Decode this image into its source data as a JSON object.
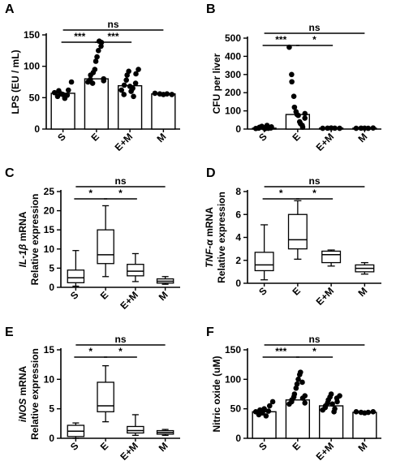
{
  "chart_data": [
    {
      "panel": "A",
      "type": "bar",
      "ylabel": "LPS (EU / mL)",
      "ylabel_parts": [
        {
          "t": "LPS (EU / mL)",
          "i": false
        }
      ],
      "ylim": [
        0,
        150
      ],
      "yticks": [
        0,
        50,
        100,
        150
      ],
      "categories": [
        "S",
        "E",
        "E+M",
        "M"
      ],
      "values": [
        57,
        80,
        69,
        56
      ],
      "points": [
        [
          58,
          52,
          61,
          56,
          55,
          49,
          54,
          62,
          75
        ],
        [
          75,
          79,
          86,
          73,
          90,
          95,
          108,
          115,
          125,
          140,
          132,
          138,
          80,
          77
        ],
        [
          62,
          55,
          70,
          78,
          86,
          92,
          68,
          60,
          65,
          52,
          73,
          88,
          95
        ],
        [
          57,
          56,
          55,
          56,
          55
        ]
      ],
      "comparisons": [
        {
          "from": 0,
          "to": 3,
          "label": "ns",
          "level": 0
        },
        {
          "from": 0,
          "to": 1,
          "label": "***",
          "level": 1
        },
        {
          "from": 1,
          "to": 2,
          "label": "***",
          "level": 1
        }
      ]
    },
    {
      "panel": "B",
      "type": "bar",
      "ylabel": "CFU per liver",
      "ylabel_parts": [
        {
          "t": "CFU per liver",
          "i": false
        }
      ],
      "ylim": [
        0,
        500
      ],
      "yticks": [
        0,
        100,
        200,
        300,
        400,
        500
      ],
      "categories": [
        "S",
        "E",
        "E+M",
        "M"
      ],
      "values": [
        5,
        80,
        5,
        5
      ],
      "points": [
        [
          3,
          5,
          10,
          15,
          8,
          2,
          20,
          4,
          6,
          12
        ],
        [
          450,
          300,
          260,
          180,
          120,
          95,
          80,
          75,
          40,
          30,
          20,
          10,
          60,
          85
        ],
        [
          4,
          5,
          6,
          5,
          4
        ],
        [
          4,
          5,
          5,
          4,
          6
        ]
      ],
      "comparisons": [
        {
          "from": 0,
          "to": 3,
          "label": "ns",
          "level": 0
        },
        {
          "from": 0,
          "to": 1,
          "label": "***",
          "level": 1
        },
        {
          "from": 1,
          "to": 2,
          "label": "*",
          "level": 1
        }
      ]
    },
    {
      "panel": "C",
      "type": "box",
      "ylabel": "IL-1β mRNA Relative expression",
      "ylabel_parts": [
        {
          "t": "IL-1",
          "i": true
        },
        {
          "t": "β",
          "i": true
        },
        {
          "t": " mRNA",
          "i": false
        }
      ],
      "ylabel2": "Relative expression",
      "ylim": [
        0,
        25
      ],
      "yticks": [
        0,
        5,
        10,
        15,
        20,
        25
      ],
      "categories": [
        "S",
        "E",
        "E+M",
        "M"
      ],
      "boxes": [
        {
          "min": 0.3,
          "q1": 1.2,
          "median": 2.5,
          "q3": 4.5,
          "max": 9.6
        },
        {
          "min": 2.8,
          "q1": 6.2,
          "median": 8.5,
          "q3": 15.0,
          "max": 21.3
        },
        {
          "min": 1.5,
          "q1": 3.0,
          "median": 4.2,
          "q3": 6.0,
          "max": 8.8
        },
        {
          "min": 0.8,
          "q1": 1.1,
          "median": 1.6,
          "q3": 2.2,
          "max": 2.8
        }
      ],
      "comparisons": [
        {
          "from": 0,
          "to": 3,
          "label": "ns",
          "level": 0
        },
        {
          "from": 0,
          "to": 1,
          "label": "*",
          "level": 1
        },
        {
          "from": 1,
          "to": 2,
          "label": "*",
          "level": 1
        }
      ]
    },
    {
      "panel": "D",
      "type": "box",
      "ylabel": "TNF-α mRNA Relative expression",
      "ylabel_parts": [
        {
          "t": "TNF-",
          "i": true
        },
        {
          "t": "α",
          "i": true
        },
        {
          "t": " mRNA",
          "i": false
        }
      ],
      "ylabel2": "Relative expression",
      "ylim": [
        0,
        8
      ],
      "yticks": [
        0,
        2,
        4,
        6,
        8
      ],
      "categories": [
        "S",
        "E",
        "E+M",
        "M"
      ],
      "boxes": [
        {
          "min": 0.3,
          "q1": 1.1,
          "median": 1.6,
          "q3": 2.7,
          "max": 5.1
        },
        {
          "min": 2.1,
          "q1": 3.0,
          "median": 3.8,
          "q3": 6.0,
          "max": 7.2
        },
        {
          "min": 1.5,
          "q1": 1.8,
          "median": 2.5,
          "q3": 2.8,
          "max": 2.9
        },
        {
          "min": 0.8,
          "q1": 1.0,
          "median": 1.3,
          "q3": 1.6,
          "max": 1.8
        }
      ],
      "comparisons": [
        {
          "from": 0,
          "to": 3,
          "label": "ns",
          "level": 0
        },
        {
          "from": 0,
          "to": 1,
          "label": "*",
          "level": 1
        },
        {
          "from": 1,
          "to": 2,
          "label": "*",
          "level": 1
        }
      ]
    },
    {
      "panel": "E",
      "type": "box",
      "ylabel": "iNOS mRNA Relative expression",
      "ylabel_parts": [
        {
          "t": "iNOS",
          "i": true
        },
        {
          "t": " mRNA",
          "i": false
        }
      ],
      "ylabel2": "Relative expression",
      "ylim": [
        0,
        15
      ],
      "yticks": [
        0,
        5,
        10,
        15
      ],
      "categories": [
        "S",
        "E",
        "E+M",
        "M"
      ],
      "boxes": [
        {
          "min": 0.0,
          "q1": 0.3,
          "median": 1.2,
          "q3": 2.2,
          "max": 2.6
        },
        {
          "min": 2.8,
          "q1": 4.5,
          "median": 5.5,
          "q3": 9.5,
          "max": 12.3
        },
        {
          "min": 0.5,
          "q1": 0.9,
          "median": 1.3,
          "q3": 2.0,
          "max": 4.0
        },
        {
          "min": 0.5,
          "q1": 0.7,
          "median": 1.0,
          "q3": 1.3,
          "max": 1.5
        }
      ],
      "comparisons": [
        {
          "from": 0,
          "to": 3,
          "label": "ns",
          "level": 0
        },
        {
          "from": 0,
          "to": 1,
          "label": "*",
          "level": 1
        },
        {
          "from": 1,
          "to": 2,
          "label": "*",
          "level": 1
        }
      ]
    },
    {
      "panel": "F",
      "type": "bar",
      "ylabel": "Nitric oxide (uM)",
      "ylabel_parts": [
        {
          "t": "Nitric oxide (uM)",
          "i": false
        }
      ],
      "ylim": [
        0,
        150
      ],
      "yticks": [
        0,
        50,
        100,
        150
      ],
      "categories": [
        "S",
        "E",
        "E+M",
        "M"
      ],
      "values": [
        45,
        65,
        55,
        44
      ],
      "points": [
        [
          45,
          40,
          48,
          43,
          50,
          38,
          46,
          55,
          62
        ],
        [
          58,
          62,
          65,
          70,
          75,
          85,
          92,
          100,
          108,
          112,
          95,
          68,
          60,
          72
        ],
        [
          48,
          52,
          55,
          60,
          65,
          70,
          75,
          58,
          45,
          50,
          68,
          62,
          72
        ],
        [
          45,
          44,
          43,
          44,
          45
        ]
      ],
      "comparisons": [
        {
          "from": 0,
          "to": 3,
          "label": "ns",
          "level": 0
        },
        {
          "from": 0,
          "to": 1,
          "label": "***",
          "level": 1
        },
        {
          "from": 1,
          "to": 2,
          "label": "*",
          "level": 1
        }
      ]
    }
  ]
}
